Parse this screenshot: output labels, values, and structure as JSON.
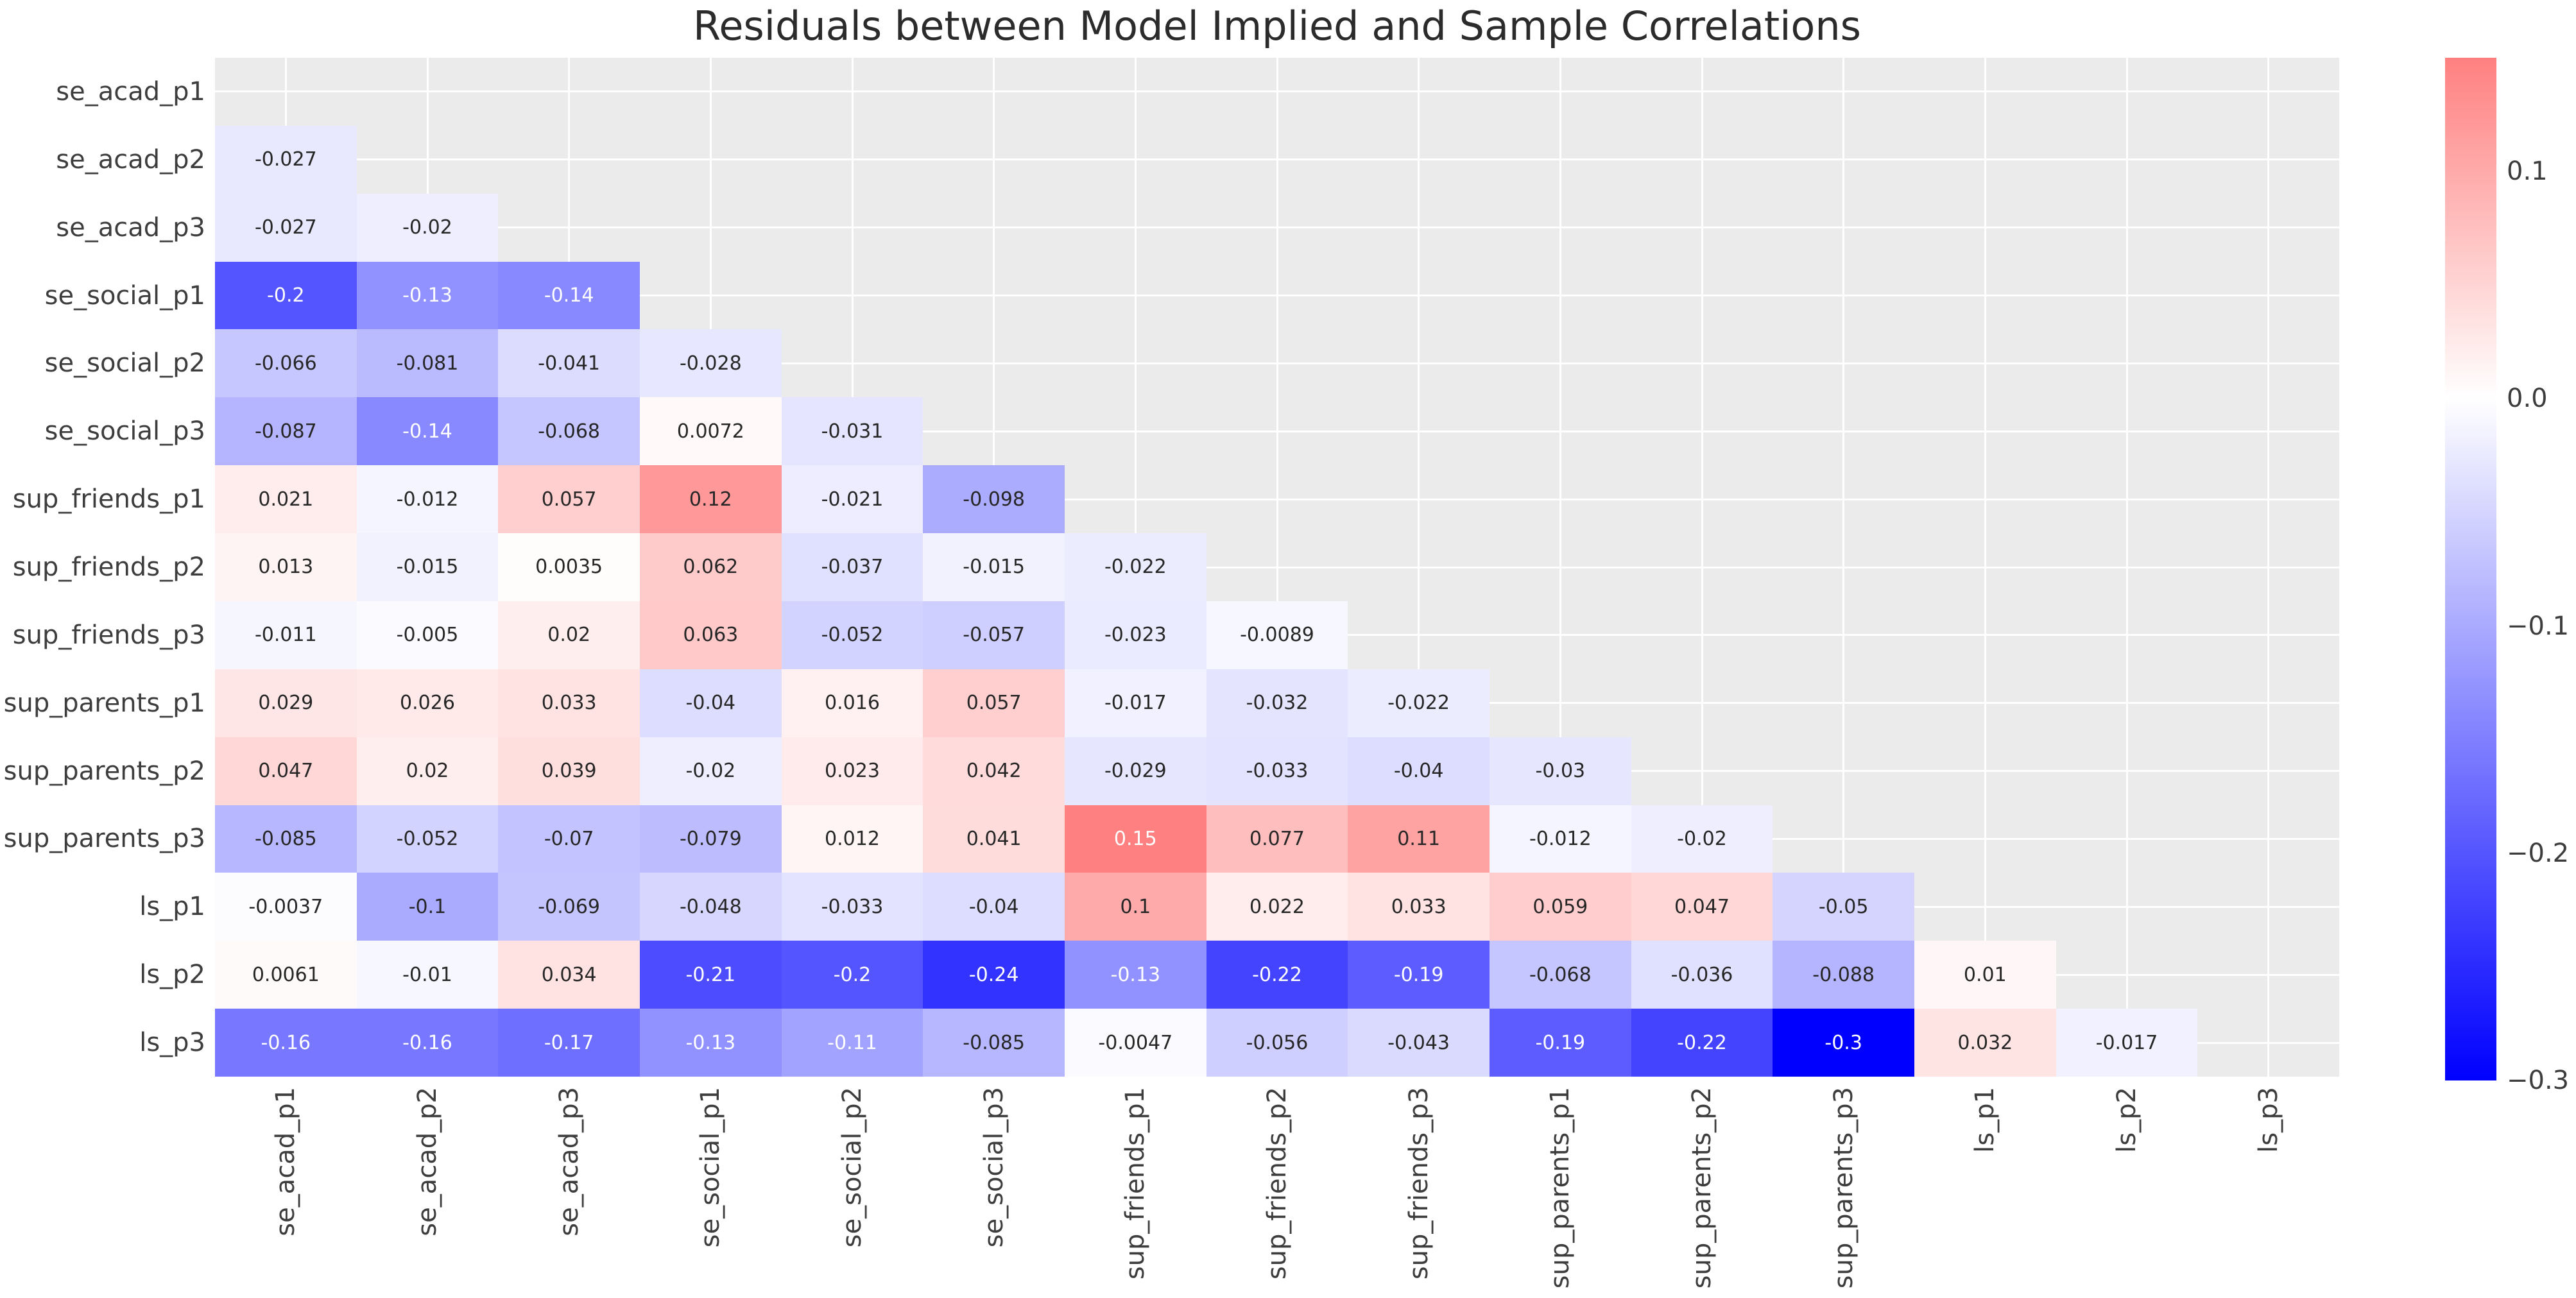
{
  "title": "Residuals between Model Implied and Sample Correlations",
  "chart_data": {
    "type": "heatmap",
    "title": "Residuals between Model Implied and Sample Correlations",
    "shape": "lower-triangle, diagonal excluded",
    "x_labels": [
      "se_acad_p1",
      "se_acad_p2",
      "se_acad_p3",
      "se_social_p1",
      "se_social_p2",
      "se_social_p3",
      "sup_friends_p1",
      "sup_friends_p2",
      "sup_friends_p3",
      "sup_parents_p1",
      "sup_parents_p2",
      "sup_parents_p3",
      "ls_p1",
      "ls_p2",
      "ls_p3"
    ],
    "y_labels": [
      "se_acad_p1",
      "se_acad_p2",
      "se_acad_p3",
      "se_social_p1",
      "se_social_p2",
      "se_social_p3",
      "sup_friends_p1",
      "sup_friends_p2",
      "sup_friends_p3",
      "sup_parents_p1",
      "sup_parents_p2",
      "sup_parents_p3",
      "ls_p1",
      "ls_p2",
      "ls_p3"
    ],
    "matrix_text": [
      [],
      [
        "-0.027"
      ],
      [
        "-0.027",
        "-0.02"
      ],
      [
        "-0.2",
        "-0.13",
        "-0.14"
      ],
      [
        "-0.066",
        "-0.081",
        "-0.041",
        "-0.028"
      ],
      [
        "-0.087",
        "-0.14",
        "-0.068",
        "0.0072",
        "-0.031"
      ],
      [
        "0.021",
        "-0.012",
        "0.057",
        "0.12",
        "-0.021",
        "-0.098"
      ],
      [
        "0.013",
        "-0.015",
        "0.0035",
        "0.062",
        "-0.037",
        "-0.015",
        "-0.022"
      ],
      [
        "-0.011",
        "-0.005",
        "0.02",
        "0.063",
        "-0.052",
        "-0.057",
        "-0.023",
        "-0.0089"
      ],
      [
        "0.029",
        "0.026",
        "0.033",
        "-0.04",
        "0.016",
        "0.057",
        "-0.017",
        "-0.032",
        "-0.022"
      ],
      [
        "0.047",
        "0.02",
        "0.039",
        "-0.02",
        "0.023",
        "0.042",
        "-0.029",
        "-0.033",
        "-0.04",
        "-0.03"
      ],
      [
        "-0.085",
        "-0.052",
        "-0.07",
        "-0.079",
        "0.012",
        "0.041",
        "0.15",
        "0.077",
        "0.11",
        "-0.012",
        "-0.02"
      ],
      [
        "-0.0037",
        "-0.1",
        "-0.069",
        "-0.048",
        "-0.033",
        "-0.04",
        "0.1",
        "0.022",
        "0.033",
        "0.059",
        "0.047",
        "-0.05"
      ],
      [
        "0.0061",
        "-0.01",
        "0.034",
        "-0.21",
        "-0.2",
        "-0.24",
        "-0.13",
        "-0.22",
        "-0.19",
        "-0.068",
        "-0.036",
        "-0.088",
        "0.01"
      ],
      [
        "-0.16",
        "-0.16",
        "-0.17",
        "-0.13",
        "-0.11",
        "-0.085",
        "-0.0047",
        "-0.056",
        "-0.043",
        "-0.19",
        "-0.22",
        "-0.3",
        "0.032",
        "-0.017"
      ]
    ],
    "colormap": {
      "style": "blue-white-red",
      "vmin": -0.3,
      "vmax": 0.3,
      "negative_color": "#0000ff",
      "zero_color": "#ffffff",
      "positive_color": "#ff0000"
    },
    "colorbar": {
      "position": "right",
      "top_value": 0.15,
      "bottom_value": -0.3,
      "ticks": [
        {
          "label": "0.1",
          "value": 0.1
        },
        {
          "label": "0.0",
          "value": 0.0
        },
        {
          "label": "−0.1",
          "value": -0.1
        },
        {
          "label": "−0.2",
          "value": -0.2
        },
        {
          "label": "−0.3",
          "value": -0.3
        }
      ]
    },
    "layout_hints": {
      "plot_background": "#ebebeb",
      "grid_color": "#ffffff",
      "grid": "white gridlines at tick positions (cell centers)",
      "figure_background": "#ffffff",
      "x_tick_rotation_deg": 90,
      "annotation_color_dark": "#262626",
      "annotation_color_light": "#ffffff"
    }
  }
}
